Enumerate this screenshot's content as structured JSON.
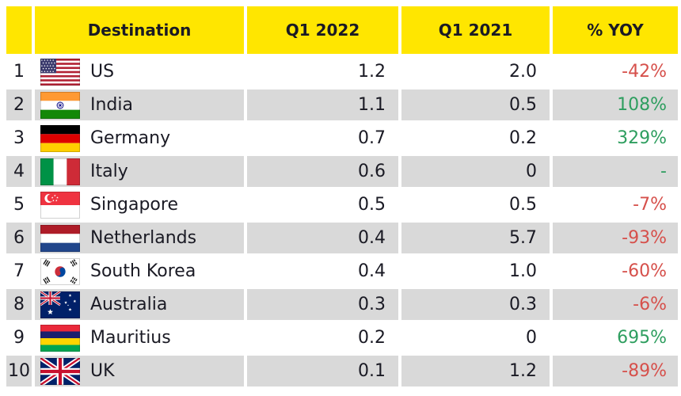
{
  "table": {
    "header": {
      "rank": "",
      "destination": "Destination",
      "q1_2022": "Q1 2022",
      "q1_2021": "Q1 2021",
      "yoy": "% YOY"
    },
    "rows": [
      {
        "rank": "1",
        "flag": "us-flag-icon",
        "destination": "US",
        "q1_2022": "1.2",
        "q1_2021": "2.0",
        "yoy": "-42%",
        "yoy_sentiment": "negative"
      },
      {
        "rank": "2",
        "flag": "india-flag-icon",
        "destination": "India",
        "q1_2022": "1.1",
        "q1_2021": "0.5",
        "yoy": "108%",
        "yoy_sentiment": "positive"
      },
      {
        "rank": "3",
        "flag": "germany-flag-icon",
        "destination": "Germany",
        "q1_2022": "0.7",
        "q1_2021": "0.2",
        "yoy": "329%",
        "yoy_sentiment": "positive"
      },
      {
        "rank": "4",
        "flag": "italy-flag-icon",
        "destination": "Italy",
        "q1_2022": "0.6",
        "q1_2021": "0",
        "yoy": "-",
        "yoy_sentiment": "positive"
      },
      {
        "rank": "5",
        "flag": "singapore-flag-icon",
        "destination": "Singapore",
        "q1_2022": "0.5",
        "q1_2021": "0.5",
        "yoy": "-7%",
        "yoy_sentiment": "negative"
      },
      {
        "rank": "6",
        "flag": "netherlands-flag-icon",
        "destination": "Netherlands",
        "q1_2022": "0.4",
        "q1_2021": "5.7",
        "yoy": "-93%",
        "yoy_sentiment": "negative"
      },
      {
        "rank": "7",
        "flag": "south-korea-flag-icon",
        "destination": "South Korea",
        "q1_2022": "0.4",
        "q1_2021": "1.0",
        "yoy": "-60%",
        "yoy_sentiment": "negative"
      },
      {
        "rank": "8",
        "flag": "australia-flag-icon",
        "destination": "Australia",
        "q1_2022": "0.3",
        "q1_2021": "0.3",
        "yoy": "-6%",
        "yoy_sentiment": "negative"
      },
      {
        "rank": "9",
        "flag": "mauritius-flag-icon",
        "destination": "Mauritius",
        "q1_2022": "0.2",
        "q1_2021": "0",
        "yoy": "695%",
        "yoy_sentiment": "positive"
      },
      {
        "rank": "10",
        "flag": "uk-flag-icon",
        "destination": "UK",
        "q1_2022": "0.1",
        "q1_2021": "1.2",
        "yoy": "-89%",
        "yoy_sentiment": "negative"
      }
    ]
  },
  "chart_data": {
    "type": "table",
    "columns": [
      "",
      "Destination",
      "Q1 2022",
      "Q1 2021",
      "% YOY"
    ],
    "rows": [
      [
        1,
        "US",
        1.2,
        2.0,
        "-42%"
      ],
      [
        2,
        "India",
        1.1,
        0.5,
        "108%"
      ],
      [
        3,
        "Germany",
        0.7,
        0.2,
        "329%"
      ],
      [
        4,
        "Italy",
        0.6,
        0,
        "-"
      ],
      [
        5,
        "Singapore",
        0.5,
        0.5,
        "-7%"
      ],
      [
        6,
        "Netherlands",
        0.4,
        5.7,
        "-93%"
      ],
      [
        7,
        "South Korea",
        0.4,
        1.0,
        "-60%"
      ],
      [
        8,
        "Australia",
        0.3,
        0.3,
        "-6%"
      ],
      [
        9,
        "Mauritius",
        0.2,
        0,
        "695%"
      ],
      [
        10,
        "UK",
        0.1,
        1.2,
        "-89%"
      ]
    ],
    "layout_hints": {
      "alternating_row_shading": "even ranks shaded gray",
      "value_alignment": "right",
      "header_style": "yellow background, bold black text"
    }
  },
  "colors": {
    "header_bg": "#FFE600",
    "row_alt_bg": "#D9D9D9",
    "text": "#1A1A24",
    "positive": "#2E9E5F",
    "negative": "#D6504B"
  }
}
